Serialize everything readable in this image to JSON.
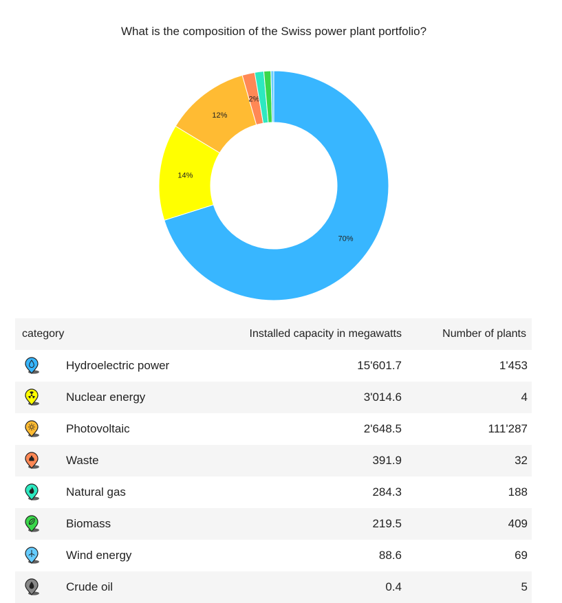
{
  "chart_data": {
    "type": "donut",
    "title": "What is the composition of the Swiss power plant portfolio?",
    "categories": [
      "Hydroelectric power",
      "Nuclear energy",
      "Photovoltaic",
      "Waste",
      "Natural gas",
      "Biomass",
      "Wind energy",
      "Crude oil"
    ],
    "values": [
      15601.7,
      3014.6,
      2648.5,
      391.9,
      284.3,
      219.5,
      88.6,
      0.4
    ],
    "slice_labels": [
      "70%",
      "14%",
      "12%",
      "2%",
      "",
      "",
      "",
      ""
    ],
    "colors": [
      "#38b6ff",
      "#ffff00",
      "#ffbb33",
      "#ff8855",
      "#2de8c0",
      "#3ad84a",
      "#66ccff",
      "#888888"
    ],
    "legend": "none"
  },
  "table": {
    "headers": {
      "category": "category",
      "capacity": "Installed capacity in megawatts",
      "plants": "Number of plants"
    },
    "rows": [
      {
        "category": "Hydroelectric power",
        "capacity": "15'601.7",
        "plants": "1'453",
        "icon": "water-drop-icon",
        "color": "#38b6ff"
      },
      {
        "category": "Nuclear energy",
        "capacity": "3'014.6",
        "plants": "4",
        "icon": "radiation-icon",
        "color": "#ffff00"
      },
      {
        "category": "Photovoltaic",
        "capacity": "2'648.5",
        "plants": "111'287",
        "icon": "sun-icon",
        "color": "#ffbb33"
      },
      {
        "category": "Waste",
        "capacity": "391.9",
        "plants": "32",
        "icon": "trash-bag-icon",
        "color": "#ff8855"
      },
      {
        "category": "Natural gas",
        "capacity": "284.3",
        "plants": "188",
        "icon": "flame-icon",
        "color": "#2de8c0"
      },
      {
        "category": "Biomass",
        "capacity": "219.5",
        "plants": "409",
        "icon": "leaf-icon",
        "color": "#3ad84a"
      },
      {
        "category": "Wind energy",
        "capacity": "88.6",
        "plants": "69",
        "icon": "wind-turbine-icon",
        "color": "#66ccff"
      },
      {
        "category": "Crude oil",
        "capacity": "0.4",
        "plants": "5",
        "icon": "oil-drop-icon",
        "color": "#888888"
      }
    ]
  }
}
